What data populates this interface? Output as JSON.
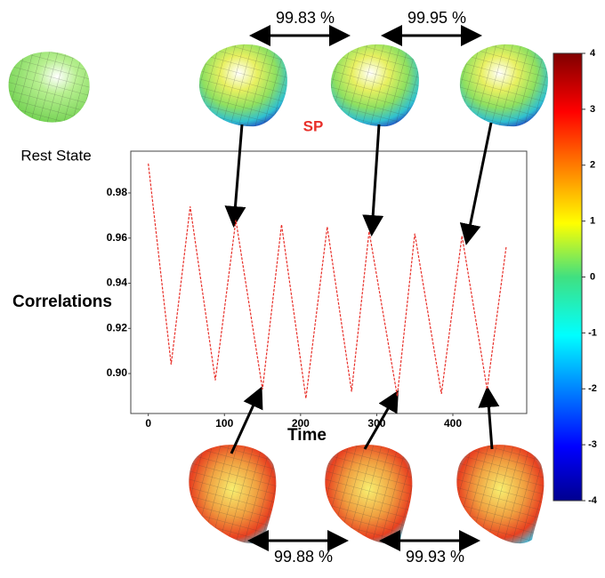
{
  "chart_data": [
    {
      "type": "line",
      "title": "SP",
      "xlabel": "Time",
      "ylabel": "Correlations",
      "color": "#e8302a",
      "x": [
        0,
        30,
        55,
        88,
        115,
        150,
        175,
        207,
        235,
        267,
        290,
        327,
        350,
        385,
        412,
        445,
        470
      ],
      "values": [
        0.993,
        0.904,
        0.974,
        0.897,
        0.968,
        0.893,
        0.966,
        0.889,
        0.965,
        0.892,
        0.963,
        0.89,
        0.962,
        0.891,
        0.961,
        0.893,
        0.956
      ],
      "xlim": [
        -23,
        497
      ],
      "xticks": [
        0,
        100,
        200,
        300,
        400
      ],
      "ylim": [
        0.8823,
        0.9985
      ],
      "yticks": [
        {
          "value": 0.9,
          "label": "0.90"
        },
        0.92,
        0.94,
        0.96,
        0.98
      ]
    },
    {
      "type": "colorbar",
      "ylim": [
        -4,
        4
      ],
      "yticks": [
        -4,
        -3,
        -2,
        -1,
        0,
        1,
        2,
        3,
        4
      ]
    }
  ],
  "annotations": [
    "Rest State",
    "99.83 %",
    "99.95 %",
    "99.88 %",
    "99.93 %"
  ]
}
